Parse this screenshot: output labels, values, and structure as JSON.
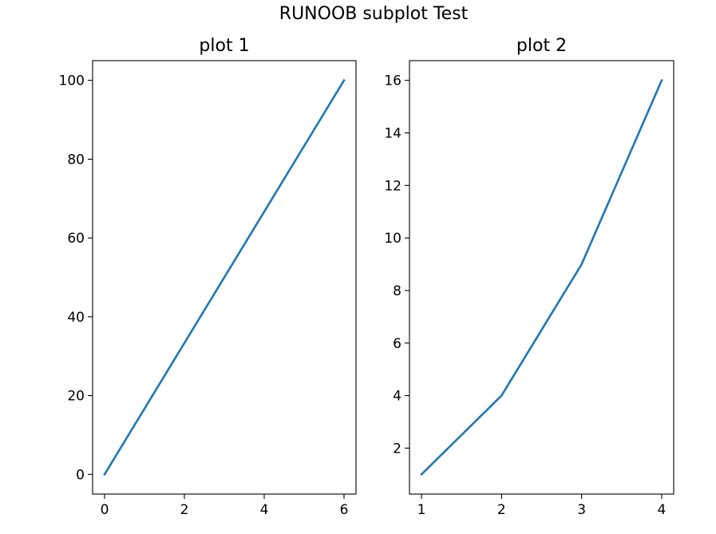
{
  "figure": {
    "suptitle": "RUNOOB subplot Test"
  },
  "chart_data": [
    {
      "type": "line",
      "title": "plot 1",
      "xlabel": "",
      "ylabel": "",
      "x": [
        0,
        6
      ],
      "series": [
        {
          "values": [
            0,
            100
          ],
          "color": "#1f77b4"
        }
      ],
      "xlim": [
        -0.3,
        6.3
      ],
      "ylim": [
        -5,
        105
      ],
      "xticks": [
        0,
        2,
        4,
        6
      ],
      "yticks": [
        0,
        20,
        40,
        60,
        80,
        100
      ],
      "grid": false
    },
    {
      "type": "line",
      "title": "plot 2",
      "xlabel": "",
      "ylabel": "",
      "x": [
        1,
        2,
        3,
        4
      ],
      "series": [
        {
          "values": [
            1,
            4,
            9,
            16
          ],
          "color": "#1f77b4"
        }
      ],
      "xlim": [
        0.85,
        4.15
      ],
      "ylim": [
        0.25,
        16.75
      ],
      "xticks": [
        1,
        2,
        3,
        4
      ],
      "yticks": [
        2,
        4,
        6,
        8,
        10,
        12,
        14,
        16
      ],
      "grid": false
    }
  ]
}
